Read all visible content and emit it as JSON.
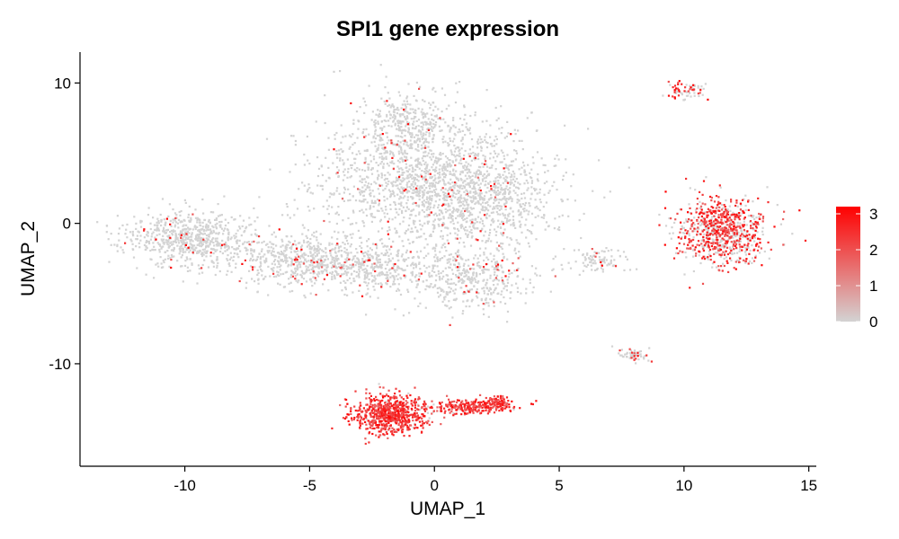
{
  "chart_data": {
    "type": "scatter",
    "title": "SPI1 gene expression",
    "xlabel": "UMAP_1",
    "ylabel": "UMAP_2",
    "xlim": [
      -14.2,
      15.3
    ],
    "ylim": [
      -17.3,
      12.2
    ],
    "x_ticks": [
      -10,
      -5,
      0,
      5,
      10,
      15
    ],
    "x_tick_labels": [
      "-10",
      "-5",
      "0",
      "5",
      "10",
      "15"
    ],
    "y_ticks": [
      10,
      0,
      -10
    ],
    "y_tick_labels": [
      "10",
      "0",
      "-10"
    ],
    "grid": false,
    "legend": {
      "placement": "right",
      "min": 0,
      "max": 3.2,
      "ticks": [
        0,
        1,
        2,
        3
      ],
      "tick_labels": [
        "0",
        "1",
        "2",
        "3"
      ],
      "colors": [
        "#d3d3d3",
        "#ff0000"
      ]
    },
    "clusters": [
      {
        "name": "main_upper",
        "cx": -0.5,
        "cy": 3.5,
        "rx": 4.0,
        "ry": 4.5,
        "n": 1500,
        "expr_frac": 0.04
      },
      {
        "name": "upper_spike",
        "cx": -1.2,
        "cy": 7.5,
        "rx": 1.3,
        "ry": 1.5,
        "n": 200,
        "expr_frac": 0.02
      },
      {
        "name": "main_right_lobe",
        "cx": 2.0,
        "cy": 1.5,
        "rx": 2.8,
        "ry": 3.0,
        "n": 600,
        "expr_frac": 0.03
      },
      {
        "name": "left_tail",
        "cx": -9.8,
        "cy": -1.0,
        "rx": 2.3,
        "ry": 1.7,
        "n": 700,
        "expr_frac": 0.03
      },
      {
        "name": "mid_bridge",
        "cx": -5.5,
        "cy": -2.5,
        "rx": 2.2,
        "ry": 1.6,
        "n": 450,
        "expr_frac": 0.05
      },
      {
        "name": "lower_middle",
        "cx": -2.5,
        "cy": -3.0,
        "rx": 2.6,
        "ry": 1.5,
        "n": 450,
        "expr_frac": 0.05
      },
      {
        "name": "lower_right",
        "cx": 1.5,
        "cy": -4.0,
        "rx": 2.2,
        "ry": 2.0,
        "n": 400,
        "expr_frac": 0.08
      },
      {
        "name": "small_right_mid",
        "cx": 6.5,
        "cy": -2.5,
        "rx": 1.1,
        "ry": 0.8,
        "n": 90,
        "expr_frac": 0.05
      },
      {
        "name": "top_right_small",
        "cx": 10.0,
        "cy": 9.5,
        "rx": 0.8,
        "ry": 0.6,
        "n": 70,
        "expr_frac": 0.45
      },
      {
        "name": "right_cluster",
        "cx": 11.5,
        "cy": -0.5,
        "rx": 1.6,
        "ry": 2.2,
        "n": 800,
        "expr_frac": 0.6
      },
      {
        "name": "small_lower_right",
        "cx": 7.9,
        "cy": -9.3,
        "rx": 0.6,
        "ry": 0.45,
        "n": 60,
        "expr_frac": 0.15
      },
      {
        "name": "bottom_main",
        "cx": -1.8,
        "cy": -13.5,
        "rx": 1.3,
        "ry": 1.2,
        "n": 700,
        "expr_frac": 0.95
      },
      {
        "name": "bottom_arm",
        "cx": 1.2,
        "cy": -13.0,
        "rx": 1.6,
        "ry": 0.45,
        "n": 250,
        "expr_frac": 0.95
      },
      {
        "name": "bottom_right_tip",
        "cx": 2.5,
        "cy": -12.7,
        "rx": 0.5,
        "ry": 0.4,
        "n": 80,
        "expr_frac": 0.95
      }
    ]
  }
}
